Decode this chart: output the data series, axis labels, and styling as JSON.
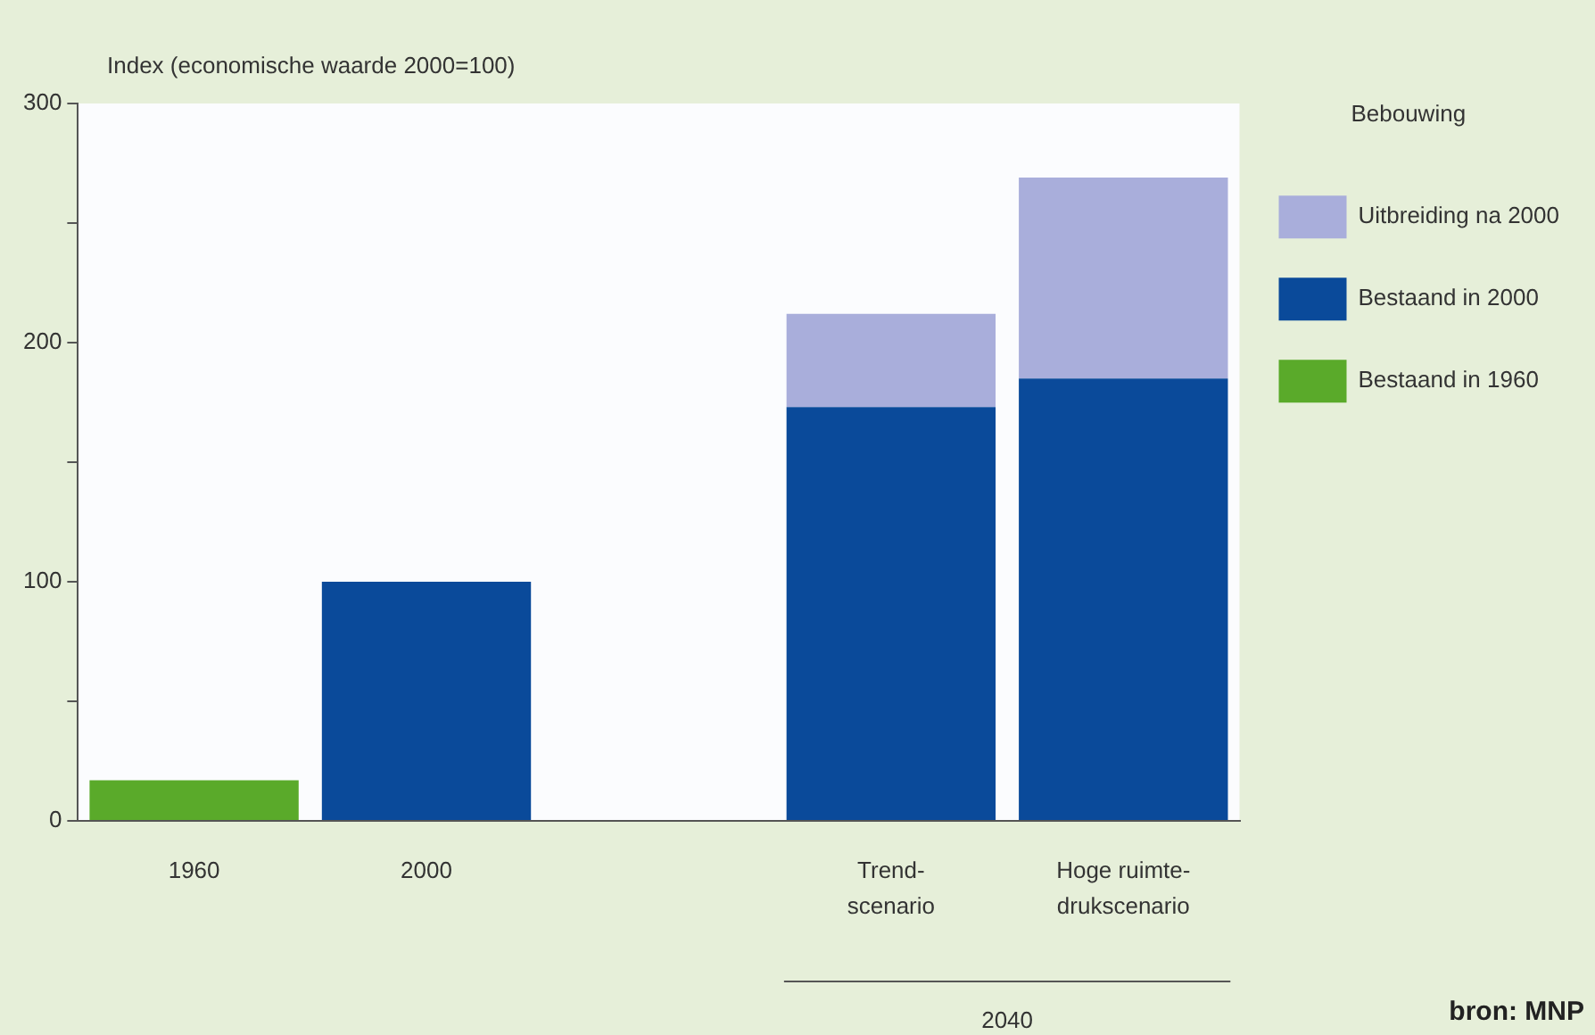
{
  "chart_data": {
    "type": "bar",
    "stacked": true,
    "ylabel": "Index (economische waarde 2000=100)",
    "legend_title": "Bebouwing",
    "legend": "right",
    "categories": [
      "1960",
      "2000",
      null,
      "Trend-\nscenario",
      "Hoge ruimte-\ndrukscenario"
    ],
    "series": [
      {
        "name": "Bestaand in 1960",
        "color": "#5aaa2a",
        "values": [
          17,
          null,
          null,
          null,
          null
        ]
      },
      {
        "name": "Bestaand in 2000",
        "color": "#0a4a9a",
        "values": [
          null,
          100,
          null,
          173,
          185
        ]
      },
      {
        "name": "Uitbreiding na 2000",
        "color": "#a9aedb",
        "values": [
          null,
          null,
          null,
          39,
          84
        ]
      }
    ],
    "ylim": [
      0,
      300
    ],
    "yticks": [
      0,
      {
        "value": 50,
        "label": null
      },
      100,
      {
        "value": 150,
        "label": null
      },
      200,
      {
        "value": 250,
        "label": null
      },
      300
    ],
    "grid": false,
    "annotations": [
      "2040",
      "bron: MNP"
    ]
  }
}
